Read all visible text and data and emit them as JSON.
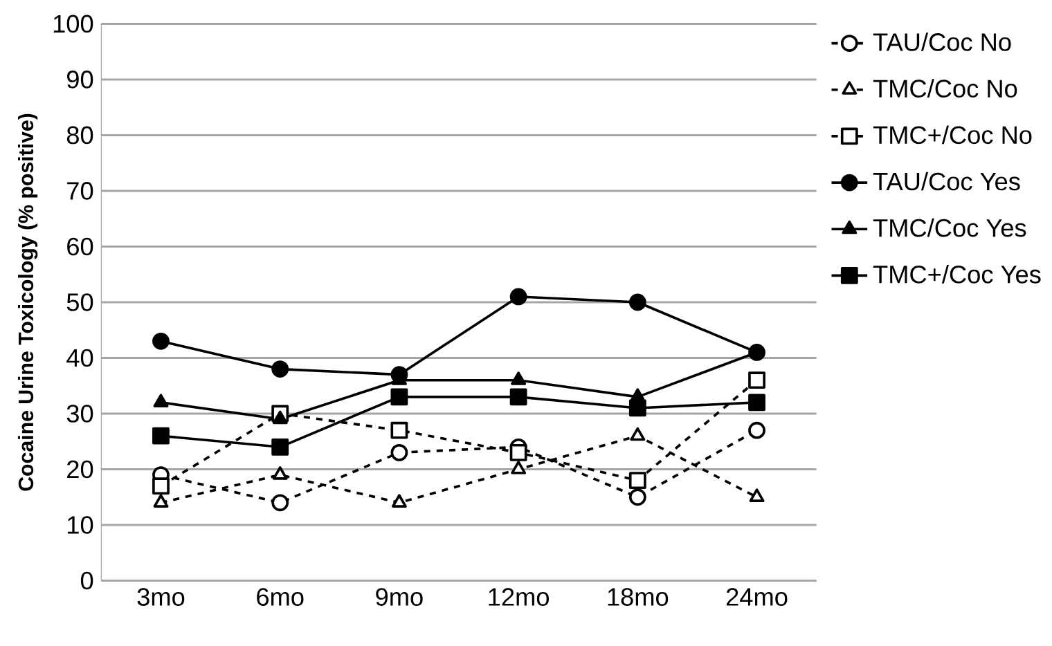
{
  "chart_data": {
    "type": "line",
    "ylabel": "Cocaine Urine Toxicology (% positive)",
    "categories": [
      "3mo",
      "6mo",
      "9mo",
      "12mo",
      "18mo",
      "24mo"
    ],
    "ylim": [
      0,
      100
    ],
    "yticks": [
      0,
      10,
      20,
      30,
      40,
      50,
      60,
      70,
      80,
      90,
      100
    ],
    "grid": "y",
    "legend": "top right",
    "series": [
      {
        "name": "TAU/Coc No",
        "color": "#000000",
        "marker": "circle",
        "line_style": "dashed",
        "values": [
          19,
          14,
          23,
          24,
          15,
          27
        ]
      },
      {
        "name": "TMC/Coc No",
        "color": "#000000",
        "marker": "triangle",
        "line_style": "dashed",
        "values": [
          14,
          19,
          14,
          20,
          26,
          15
        ]
      },
      {
        "name": "TMC+/Coc No",
        "color": "#000000",
        "marker": "square",
        "line_style": "dashed",
        "values": [
          17,
          30,
          27,
          23,
          18,
          36
        ]
      },
      {
        "name": "TAU/Coc Yes",
        "color": "#000000",
        "marker": "circle",
        "line_style": "solid",
        "values": [
          43,
          38,
          37,
          51,
          50,
          41
        ]
      },
      {
        "name": "TMC/Coc Yes",
        "color": "#000000",
        "marker": "triangle",
        "line_style": "solid",
        "values": [
          32,
          29,
          36,
          36,
          33,
          41
        ]
      },
      {
        "name": "TMC+/Coc Yes",
        "color": "#000000",
        "marker": "square",
        "line_style": "solid",
        "values": [
          26,
          24,
          33,
          33,
          31,
          32
        ]
      }
    ]
  }
}
